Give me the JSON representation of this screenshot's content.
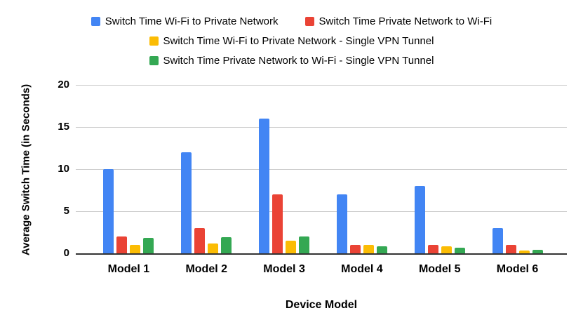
{
  "chart_data": {
    "type": "bar",
    "title": "",
    "xlabel": "Device Model",
    "ylabel": "Average Switch Time (in Seconds)",
    "ylim": [
      0,
      20
    ],
    "y_ticks": [
      0,
      5,
      10,
      15,
      20
    ],
    "grid": true,
    "legend_position": "top",
    "categories": [
      "Model 1",
      "Model 2",
      "Model 3",
      "Model 4",
      "Model 5",
      "Model 6"
    ],
    "series": [
      {
        "name": "Switch Time Wi-Fi to Private Network",
        "color": "#4285F4",
        "values": [
          10,
          12,
          16,
          7,
          8,
          3
        ]
      },
      {
        "name": "Switch Time Private Network to Wi-Fi",
        "color": "#EA4335",
        "values": [
          2,
          3,
          7,
          1,
          1,
          1
        ]
      },
      {
        "name": "Switch Time Wi-Fi to Private Network - Single VPN Tunnel",
        "color": "#FBBC04",
        "values": [
          1,
          1.2,
          1.5,
          1,
          0.8,
          0.3
        ]
      },
      {
        "name": "Switch Time Private Network to Wi-Fi - Single VPN Tunnel",
        "color": "#34A853",
        "values": [
          1.8,
          1.9,
          2,
          0.8,
          0.7,
          0.4
        ]
      }
    ]
  },
  "palette": {
    "background": "#ffffff",
    "gridline": "#cccccc",
    "axis_line": "#333333",
    "text": "#000000"
  }
}
